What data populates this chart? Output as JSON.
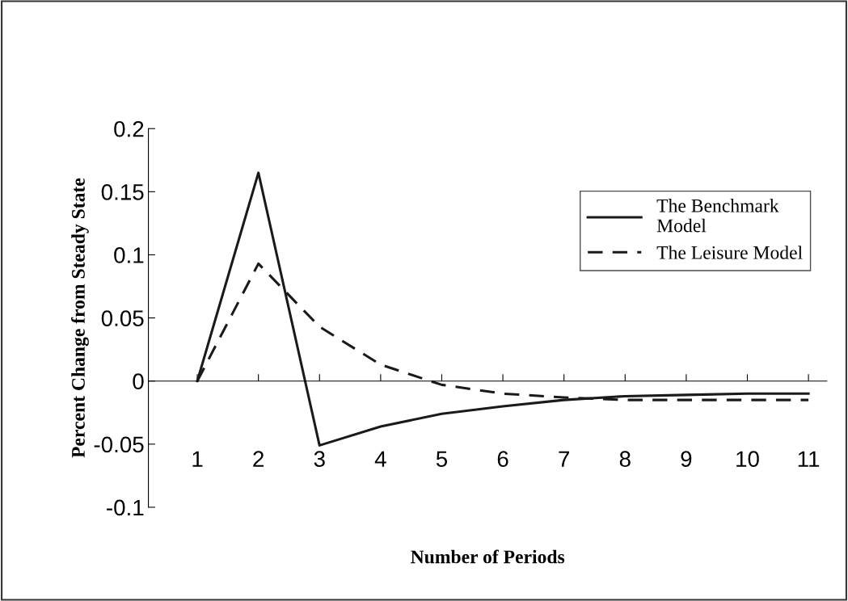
{
  "chart_data": {
    "type": "line",
    "xlabel": "Number of Periods",
    "ylabel": "Percent Change from Steady State",
    "categories": [
      "1",
      "2",
      "3",
      "4",
      "5",
      "6",
      "7",
      "8",
      "9",
      "10",
      "11"
    ],
    "series": [
      {
        "name": "The Benchmark\nModel",
        "color": "#1a1a1a",
        "line_style": "solid",
        "values": [
          0,
          0.165,
          -0.051,
          -0.036,
          -0.026,
          -0.02,
          -0.015,
          -0.012,
          -0.011,
          -0.01,
          -0.01
        ]
      },
      {
        "name": "The Leisure Model",
        "color": "#1a1a1a",
        "line_style": "dashed",
        "values": [
          0,
          0.093,
          0.043,
          0.013,
          -0.003,
          -0.01,
          -0.013,
          -0.015,
          -0.015,
          -0.015,
          -0.015
        ]
      }
    ],
    "ylim": [
      -0.1,
      0.2
    ],
    "yticks": [
      {
        "value": -0.1,
        "label": "-0.1"
      },
      {
        "value": -0.05,
        "label": "-0.05"
      },
      0,
      0.05,
      0.1,
      0.15,
      0.2
    ],
    "legend": "top right",
    "marker": "none"
  }
}
